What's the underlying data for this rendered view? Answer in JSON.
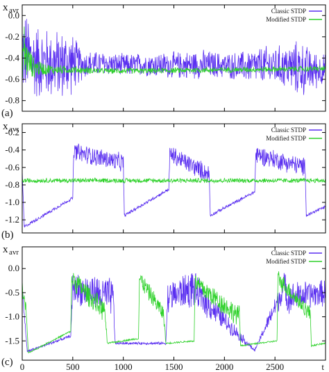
{
  "colors": {
    "classic": "#5a2ff0",
    "modified": "#2ed12a",
    "axis": "#000000"
  },
  "chart_data": [
    {
      "type": "line",
      "panel_label": "(a)",
      "ylabel_main": "x",
      "ylabel_sub": "avr",
      "xlabel": "",
      "xlim": [
        0,
        3000
      ],
      "ylim": [
        -0.9,
        0.1
      ],
      "yticks": [
        "0.0",
        "-0.2",
        "-0.4",
        "-0.6",
        "-0.8"
      ],
      "ytick_values": [
        0.0,
        -0.2,
        -0.4,
        -0.6,
        -0.8
      ],
      "legend_position": "top-right",
      "series": [
        {
          "name": "Classic STDP",
          "color": "#5a2ff0",
          "x": [
            0,
            25,
            50,
            100,
            200,
            300,
            400,
            450,
            500,
            600,
            800,
            1000,
            1200,
            1500,
            1800,
            2000,
            2200,
            2400,
            2600,
            2750,
            2850,
            3000
          ],
          "center": [
            -0.35,
            -0.35,
            -0.38,
            -0.42,
            -0.45,
            -0.46,
            -0.46,
            -0.46,
            -0.45,
            -0.46,
            -0.45,
            -0.47,
            -0.46,
            -0.47,
            -0.46,
            -0.47,
            -0.48,
            -0.47,
            -0.48,
            -0.5,
            -0.52,
            -0.5
          ],
          "amplitude": [
            0.45,
            0.45,
            0.42,
            0.4,
            0.38,
            0.36,
            0.36,
            0.36,
            0.3,
            0.15,
            0.12,
            0.12,
            0.12,
            0.14,
            0.15,
            0.13,
            0.16,
            0.2,
            0.22,
            0.3,
            0.22,
            0.15
          ]
        },
        {
          "name": "Modified STDP",
          "color": "#2ed12a",
          "x": [
            0,
            25,
            50,
            100,
            200,
            300,
            500,
            800,
            1200,
            2000,
            3000
          ],
          "center": [
            -0.35,
            -0.35,
            -0.42,
            -0.48,
            -0.5,
            -0.51,
            -0.51,
            -0.52,
            -0.52,
            -0.51,
            -0.5
          ],
          "amplitude": [
            0.4,
            0.3,
            0.2,
            0.12,
            0.07,
            0.05,
            0.04,
            0.03,
            0.03,
            0.03,
            0.03
          ]
        }
      ]
    },
    {
      "type": "line",
      "panel_label": "(b)",
      "ylabel_main": "x",
      "ylabel_sub": "avr",
      "xlabel": "",
      "xlim": [
        0,
        3000
      ],
      "ylim": [
        -1.35,
        -0.1
      ],
      "yticks": [
        "-0.2",
        "-0.4",
        "-0.6",
        "-0.8",
        "-1.0",
        "-1.2"
      ],
      "ytick_values": [
        -0.2,
        -0.4,
        -0.6,
        -0.8,
        -1.0,
        -1.2
      ],
      "legend_position": "top-right",
      "series": [
        {
          "name": "Classic STDP",
          "color": "#5a2ff0",
          "x": [
            0,
            20,
            500,
            510,
            1000,
            1010,
            1450,
            1460,
            1850,
            1860,
            2300,
            2310,
            2800,
            2810,
            3000
          ],
          "center": [
            -0.65,
            -1.28,
            -0.95,
            -0.42,
            -0.55,
            -1.15,
            -0.85,
            -0.45,
            -0.68,
            -1.15,
            -0.88,
            -0.45,
            -0.6,
            -1.15,
            -1.05
          ],
          "amplitude": [
            0.02,
            0.02,
            0.02,
            0.12,
            0.12,
            0.02,
            0.02,
            0.12,
            0.12,
            0.02,
            0.02,
            0.12,
            0.12,
            0.02,
            0.02
          ]
        },
        {
          "name": "Modified STDP",
          "color": "#2ed12a",
          "x": [
            0,
            3000
          ],
          "center": [
            -0.75,
            -0.75
          ],
          "amplitude": [
            0.03,
            0.03
          ]
        }
      ]
    },
    {
      "type": "line",
      "panel_label": "(c)",
      "ylabel_main": "x",
      "ylabel_sub": "avr",
      "xlabel": "t",
      "xlim": [
        0,
        3000
      ],
      "ylim": [
        -1.9,
        0.45
      ],
      "xticks": [
        "0",
        "500",
        "1000",
        "1500",
        "2000",
        "2500"
      ],
      "xtick_values": [
        0,
        500,
        1000,
        1500,
        2000,
        2500
      ],
      "yticks": [
        "0.0",
        "-0.5",
        "-1.0",
        "-1.5"
      ],
      "ytick_values": [
        0.0,
        -0.5,
        -1.0,
        -1.5
      ],
      "legend_position": "top-right",
      "series": [
        {
          "name": "Classic STDP",
          "color": "#5a2ff0",
          "x": [
            0,
            50,
            480,
            500,
            900,
            920,
            1420,
            1440,
            1700,
            1720,
            2300,
            2320,
            2600,
            2620,
            3000
          ],
          "center": [
            -0.4,
            -1.72,
            -1.4,
            -0.4,
            -0.6,
            -1.55,
            -1.55,
            -0.6,
            -0.4,
            -0.5,
            -1.7,
            -1.6,
            -0.35,
            -0.6,
            -0.5
          ],
          "amplitude": [
            0.1,
            0.03,
            0.03,
            0.35,
            0.45,
            0.03,
            0.03,
            0.35,
            0.45,
            0.4,
            0.03,
            0.03,
            0.35,
            0.35,
            0.3
          ]
        },
        {
          "name": "Modified STDP",
          "color": "#2ed12a",
          "x": [
            0,
            40,
            60,
            480,
            490,
            820,
            840,
            1150,
            1160,
            1400,
            1420,
            1700,
            1710,
            2150,
            2160,
            2520,
            2530,
            2850,
            2860,
            3000
          ],
          "center": [
            -0.4,
            -0.9,
            -1.75,
            -1.3,
            -0.2,
            -0.9,
            -1.55,
            -1.45,
            -0.2,
            -0.95,
            -1.55,
            -1.5,
            -0.3,
            -1.0,
            -1.6,
            -1.5,
            -0.2,
            -0.95,
            -1.6,
            -1.55
          ],
          "amplitude": [
            0.2,
            0.15,
            0.02,
            0.02,
            0.25,
            0.25,
            0.02,
            0.02,
            0.2,
            0.2,
            0.02,
            0.02,
            0.25,
            0.25,
            0.02,
            0.02,
            0.2,
            0.2,
            0.02,
            0.02
          ]
        }
      ]
    }
  ]
}
